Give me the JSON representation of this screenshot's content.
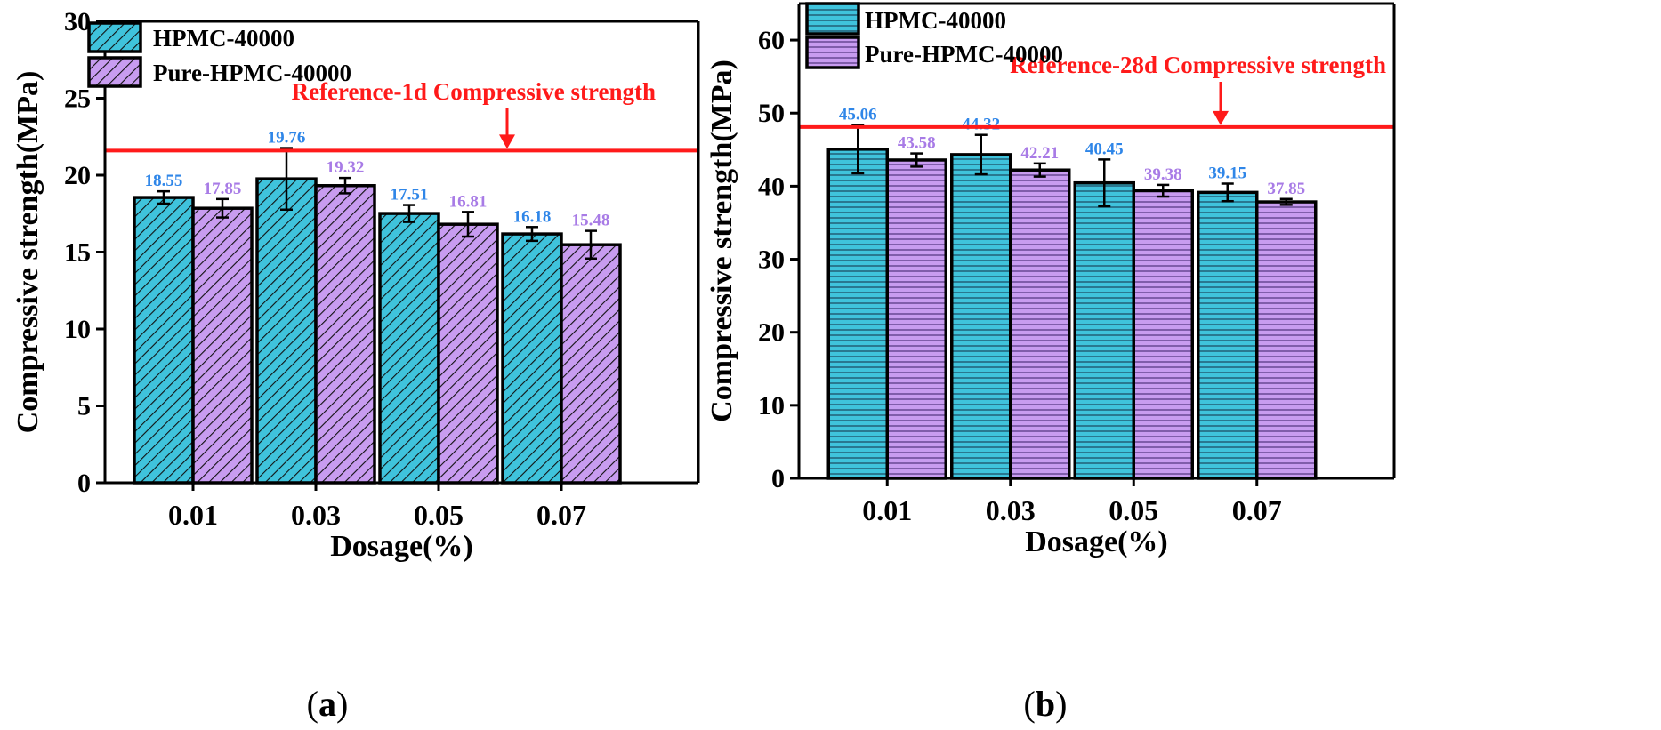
{
  "colors": {
    "hpmc": "#3fc3dc",
    "pure": "#c89cf0",
    "hpmc_label": "#2f86e8",
    "pure_label": "#a87be6",
    "reference": "#ff1a1a",
    "axis": "#000000"
  },
  "chart_data": [
    {
      "panel": "a",
      "type": "bar",
      "ylabel": "Compressive strength(MPa)",
      "xlabel": "Dosage(%)",
      "ylim": [
        0,
        30
      ],
      "yticks": [
        0,
        5,
        10,
        15,
        20,
        25,
        30
      ],
      "yticks_text": [
        "0",
        "5",
        "10",
        "15",
        "20",
        "25",
        "30"
      ],
      "categories": [
        "0.01",
        "0.03",
        "0.05",
        "0.07"
      ],
      "pattern": "diagonal",
      "series": [
        {
          "name": "HPMC-40000",
          "values": [
            18.55,
            19.76,
            17.51,
            16.18
          ],
          "labels": [
            "18.55",
            "19.76",
            "17.51",
            "16.18"
          ],
          "errors": [
            0.4,
            2.0,
            0.55,
            0.45
          ]
        },
        {
          "name": "Pure-HPMC-40000",
          "values": [
            17.85,
            19.32,
            16.81,
            15.48
          ],
          "labels": [
            "17.85",
            "19.32",
            "16.81",
            "15.48"
          ],
          "errors": [
            0.6,
            0.5,
            0.8,
            0.9
          ]
        }
      ],
      "reference": {
        "value": 21.6,
        "label": "Reference-1d Compressive strength"
      },
      "legend": [
        "HPMC-40000",
        "Pure-HPMC-40000"
      ],
      "legend_position": "top-left",
      "panel_label": {
        "open": "(",
        "letter": "a",
        "close": ")"
      }
    },
    {
      "panel": "b",
      "type": "bar",
      "ylabel": "Compressive strength(MPa)",
      "xlabel": "Dosage(%)",
      "ylim": [
        0,
        65
      ],
      "yticks": [
        0,
        10,
        20,
        30,
        40,
        50,
        60
      ],
      "yticks_text": [
        "0",
        "10",
        "20",
        "30",
        "40",
        "50",
        "60"
      ],
      "categories": [
        "0.01",
        "0.03",
        "0.05",
        "0.07"
      ],
      "pattern": "horizontal",
      "series": [
        {
          "name": "HPMC-40000",
          "values": [
            45.06,
            44.32,
            40.45,
            39.15
          ],
          "labels": [
            "45.06",
            "44.32",
            "40.45",
            "39.15"
          ],
          "errors": [
            3.3,
            2.7,
            3.2,
            1.2
          ]
        },
        {
          "name": "Pure-HPMC-40000",
          "values": [
            43.58,
            42.21,
            39.38,
            37.85
          ],
          "labels": [
            "43.58",
            "42.21",
            "39.38",
            "37.85"
          ],
          "errors": [
            0.9,
            0.9,
            0.8,
            0.4
          ]
        }
      ],
      "reference": {
        "value": 48.1,
        "label": "Reference-28d Compressive strength"
      },
      "legend": [
        "HPMC-40000",
        "Pure-HPMC-40000"
      ],
      "legend_position": "top-left",
      "panel_label": {
        "open": "(",
        "letter": "b",
        "close": ")"
      }
    }
  ]
}
